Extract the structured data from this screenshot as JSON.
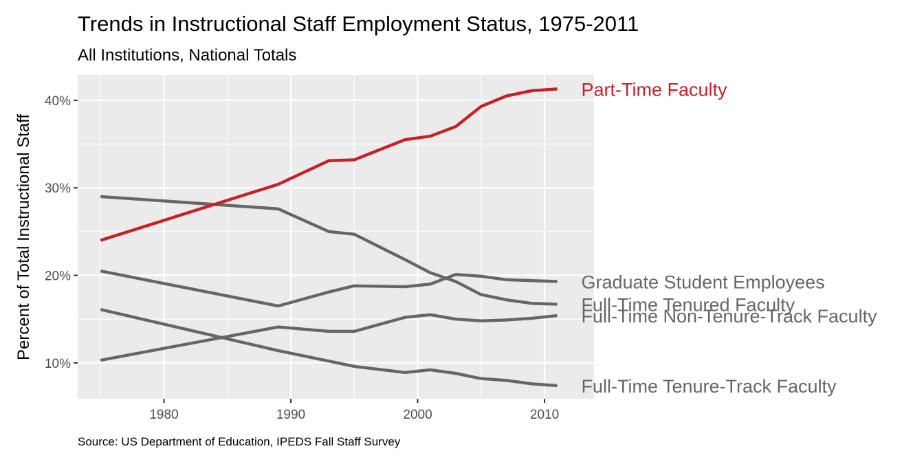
{
  "chart_data": {
    "type": "line",
    "title": "Trends in Instructional Staff Employment Status, 1975-2011",
    "subtitle": "All Institutions, National Totals",
    "ylabel": "Percent of Total Instructional Staff",
    "xlabel": "",
    "caption": "Source: US Department of Education, IPEDS Fall Staff Survey",
    "xlim": [
      1973.2,
      2013.9
    ],
    "ylim": [
      5.9,
      42.9
    ],
    "x_ticks": [
      1980,
      1990,
      2000,
      2010
    ],
    "x_tick_labels": [
      "1980",
      "1990",
      "2000",
      "2010"
    ],
    "y_ticks": [
      10,
      20,
      30,
      40
    ],
    "y_tick_labels": [
      "10%",
      "20%",
      "30%",
      "40%"
    ],
    "grid": true,
    "legend": "none",
    "x": [
      1975,
      1989,
      1993,
      1995,
      1999,
      2001,
      2003,
      2005,
      2007,
      2009,
      2011
    ],
    "series": [
      {
        "name": "Part-Time Faculty",
        "color": "#c62128",
        "values": [
          24.0,
          30.4,
          33.1,
          33.2,
          35.5,
          35.9,
          37.0,
          39.3,
          40.5,
          41.1,
          41.3
        ]
      },
      {
        "name": "Graduate Student Employees",
        "color": "#666666",
        "values": [
          20.5,
          16.5,
          18.1,
          18.8,
          18.7,
          19.0,
          20.1,
          19.9,
          19.5,
          19.4,
          19.3
        ]
      },
      {
        "name": "Full-Time Tenured Faculty",
        "color": "#666666",
        "values": [
          29.0,
          27.6,
          25.0,
          24.7,
          21.8,
          20.3,
          19.3,
          17.8,
          17.2,
          16.8,
          16.7
        ]
      },
      {
        "name": "Full-Time Non-Tenure-Track Faculty",
        "color": "#666666",
        "values": [
          10.3,
          14.1,
          13.6,
          13.6,
          15.2,
          15.5,
          15.0,
          14.8,
          14.9,
          15.1,
          15.4
        ]
      },
      {
        "name": "Full-Time Tenure-Track Faculty",
        "color": "#666666",
        "values": [
          16.1,
          11.4,
          10.2,
          9.6,
          8.9,
          9.2,
          8.8,
          8.2,
          8.0,
          7.6,
          7.4
        ]
      }
    ]
  }
}
